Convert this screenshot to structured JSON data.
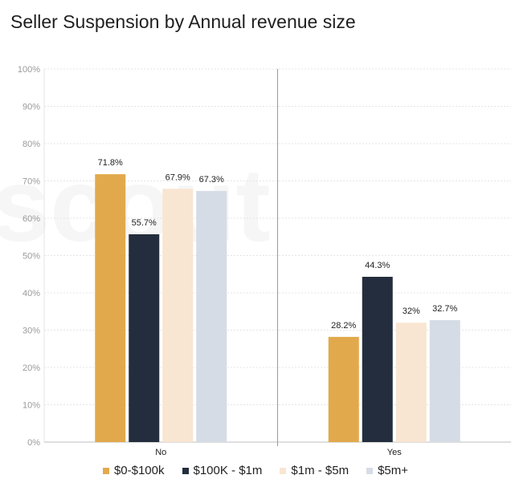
{
  "chart_data": {
    "type": "bar",
    "title": "Seller Suspension by Annual revenue size",
    "categories": [
      "No",
      "Yes"
    ],
    "ylim": [
      0,
      100
    ],
    "yticks": [
      "0%",
      "10%",
      "20%",
      "30%",
      "40%",
      "50%",
      "60%",
      "70%",
      "80%",
      "90%",
      "100%"
    ],
    "grid": true,
    "legend_position": "bottom",
    "series": [
      {
        "name": "$0-$100k",
        "color": "#E2A94C",
        "values": [
          71.8,
          28.2
        ],
        "labels": [
          "71.8%",
          "28.2%"
        ]
      },
      {
        "name": "$100K - $1m",
        "color": "#232D3D",
        "values": [
          55.7,
          44.3
        ],
        "labels": [
          "55.7%",
          "44.3%"
        ]
      },
      {
        "name": "$1m - $5m",
        "color": "#F8E6D2",
        "values": [
          67.9,
          32
        ],
        "labels": [
          "67.9%",
          "32%"
        ]
      },
      {
        "name": "$5m+",
        "color": "#D6DCE6",
        "values": [
          67.3,
          32.7
        ],
        "labels": [
          "67.3%",
          "32.7%"
        ]
      }
    ],
    "watermark": "scout"
  }
}
